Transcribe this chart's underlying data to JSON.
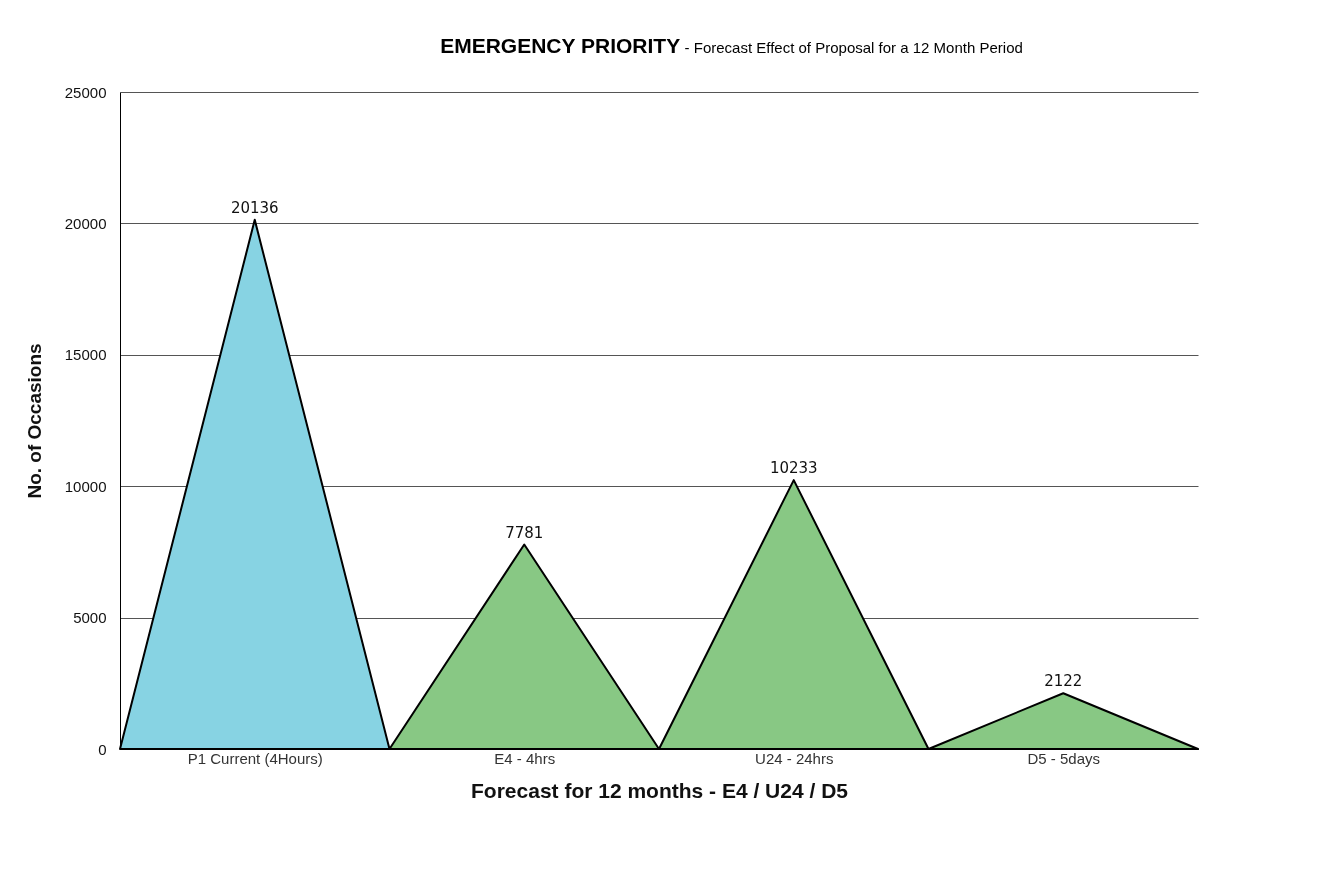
{
  "chart_data": {
    "type": "area",
    "title": "EMERGENCY PRIORITY",
    "subtitle": "- Forecast Effect of Proposal for a 12 Month Period",
    "xlabel": "Forecast for 12 months - E4 / U24 / D5",
    "ylabel": "No. of Occasions",
    "categories": [
      null,
      "P1 Current (4Hours)",
      null,
      "E4 - 4hrs",
      null,
      "U24 - 24hrs",
      null,
      "D5 - 5days",
      null
    ],
    "series": [
      {
        "color": "#87d3e3",
        "values": [
          0,
          20136,
          0,
          null,
          null,
          null,
          null,
          null,
          null
        ],
        "value_labels": [
          null,
          "20136",
          null,
          null,
          null,
          null,
          null,
          null,
          null
        ]
      },
      {
        "color": "#88c884",
        "values": [
          null,
          null,
          0,
          7781,
          0,
          10233,
          0,
          2122,
          0
        ],
        "value_labels": [
          null,
          null,
          null,
          "7781",
          null,
          "10233",
          null,
          "2122",
          null
        ]
      }
    ],
    "ylim": [
      0,
      25000
    ],
    "yticks": [
      0,
      5000,
      10000,
      15000,
      20000,
      25000
    ],
    "grid": "y"
  }
}
